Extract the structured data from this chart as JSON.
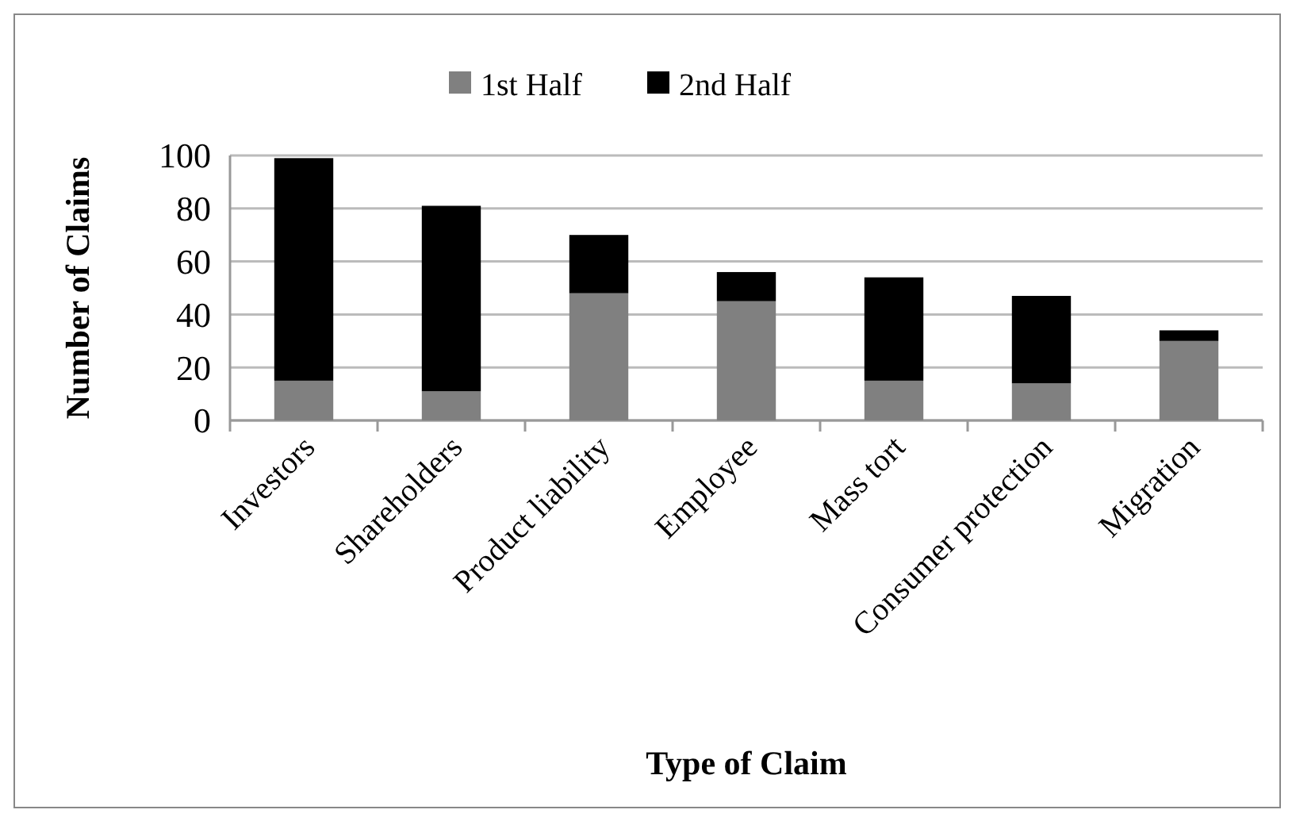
{
  "chart_data": {
    "type": "bar",
    "stacked": true,
    "xlabel": "Type of Claim",
    "ylabel": "Number of Claims",
    "categories": [
      "Investors",
      "Shareholders",
      "Product liability",
      "Employee",
      "Mass tort",
      "Consumer protection",
      "Migration"
    ],
    "series": [
      {
        "name": "1st Half",
        "color": "#808080",
        "values": [
          15,
          11,
          48,
          45,
          15,
          14,
          30
        ]
      },
      {
        "name": "2nd Half",
        "color": "#000000",
        "values": [
          84,
          70,
          22,
          11,
          39,
          33,
          4
        ]
      }
    ],
    "ylim": [
      0,
      100
    ],
    "yticks": [
      0,
      20,
      40,
      60,
      80,
      100
    ],
    "grid": "y",
    "legend": "top"
  }
}
